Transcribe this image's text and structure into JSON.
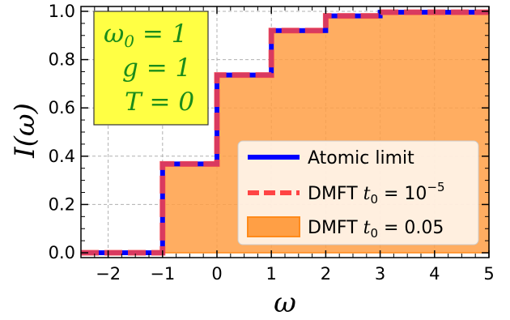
{
  "chart_data": {
    "type": "line",
    "xlabel": "ω",
    "ylabel": "I(ω)",
    "xlim": [
      -2.5,
      5
    ],
    "ylim": [
      -0.02,
      1.02
    ],
    "xticks": [
      -2,
      -1,
      0,
      1,
      2,
      3,
      4,
      5
    ],
    "xtick_labels": [
      "−2",
      "−1",
      "0",
      "1",
      "2",
      "3",
      "4",
      "5"
    ],
    "yticks": [
      0.0,
      0.2,
      0.4,
      0.6,
      0.8,
      1.0
    ],
    "ytick_labels": [
      "0.0",
      "0.2",
      "0.4",
      "0.6",
      "0.8",
      "1.0"
    ],
    "grid": true,
    "legend_position": "lower-right",
    "annotation": {
      "lines": [
        "ω₀ = 1",
        "g = 1",
        "T = 0"
      ],
      "background": "#ffff44"
    },
    "series": [
      {
        "name": "Atomic limit",
        "style": "solid-line",
        "color": "#0000ff",
        "x": [
          -2.5,
          -1,
          -1,
          0,
          0,
          1,
          1,
          2,
          2,
          3,
          3,
          5
        ],
        "y": [
          0,
          0,
          0.368,
          0.368,
          0.736,
          0.736,
          0.92,
          0.92,
          0.981,
          0.981,
          0.996,
          0.996
        ]
      },
      {
        "name": "DMFT t0 = 10^-5",
        "style": "dashed-line",
        "color": "#ff4444",
        "x": [
          -2.5,
          -1,
          -1,
          0,
          0,
          1,
          1,
          2,
          2,
          3,
          3,
          5
        ],
        "y": [
          0,
          0,
          0.368,
          0.368,
          0.736,
          0.736,
          0.92,
          0.92,
          0.981,
          0.981,
          0.996,
          0.996
        ]
      },
      {
        "name": "DMFT t0 = 0.05",
        "style": "filled-area",
        "color": "#ff9f45",
        "x": [
          -2.5,
          -1,
          -1,
          0,
          0,
          1,
          1,
          2,
          2,
          3,
          3,
          5
        ],
        "y": [
          0,
          0,
          0.36,
          0.36,
          0.728,
          0.728,
          0.912,
          0.912,
          0.975,
          0.975,
          0.99,
          0.99
        ]
      }
    ],
    "legend": {
      "atomic": "Atomic limit",
      "dmft_prefix": "DMFT ",
      "t_symbol": "t",
      "t_sub": "0",
      "dmft1_rhs": " = 10",
      "dmft1_exp": "−5",
      "dmft2_rhs": " = 0.05"
    }
  }
}
